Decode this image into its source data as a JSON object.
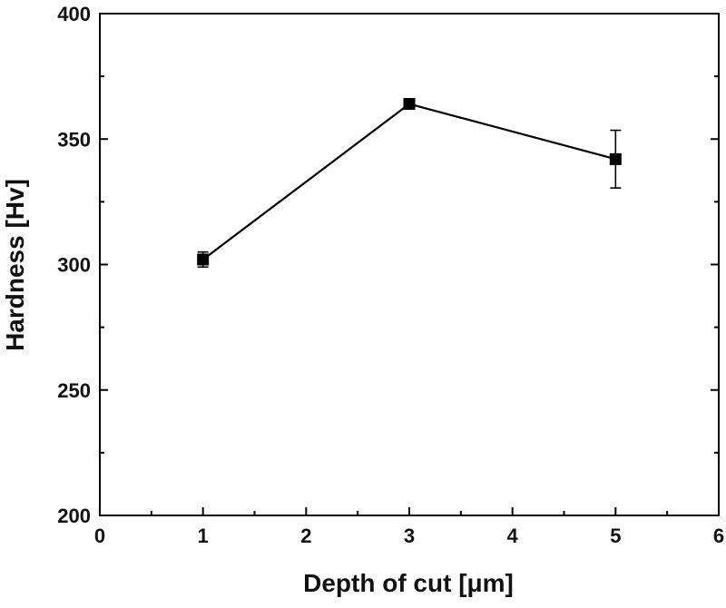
{
  "chart_data": {
    "type": "scatter",
    "connected": true,
    "title": "",
    "xlabel": "Depth of cut [μm]",
    "ylabel": "Hardness [Hv]",
    "xlim": [
      0,
      6
    ],
    "ylim": [
      200,
      400
    ],
    "xticks": [
      0,
      1,
      2,
      3,
      4,
      5,
      6
    ],
    "yticks": [
      200,
      250,
      300,
      350,
      400
    ],
    "grid": false,
    "legend": "none",
    "marker": "square",
    "line_color": "#000000",
    "marker_color": "#000000",
    "series": [
      {
        "x": [
          1,
          3,
          5
        ],
        "y": [
          302,
          364,
          342
        ],
        "error": [
          3,
          2,
          11.5
        ]
      }
    ]
  }
}
